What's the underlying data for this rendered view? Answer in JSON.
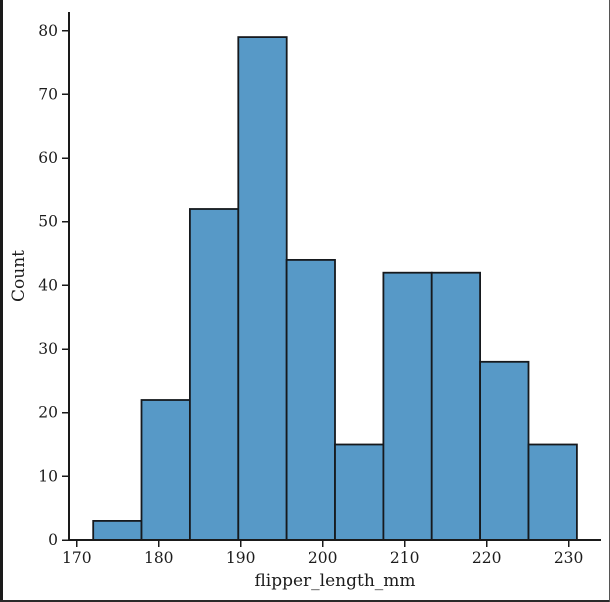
{
  "figure": {
    "background": "#ffffff",
    "border_color": "#1a1a1a"
  },
  "chart_data": {
    "type": "bar",
    "subtype": "histogram",
    "title": "",
    "xlabel": "flipper_length_mm",
    "ylabel": "Count",
    "bin_edges": [
      172,
      177.9,
      183.8,
      189.7,
      195.6,
      201.5,
      207.4,
      213.3,
      219.2,
      225.1,
      231
    ],
    "counts": [
      3,
      22,
      52,
      79,
      44,
      15,
      42,
      42,
      28,
      15
    ],
    "x_ticks": [
      170,
      180,
      190,
      200,
      210,
      220,
      230
    ],
    "y_ticks": [
      0,
      10,
      20,
      30,
      40,
      50,
      60,
      70,
      80
    ],
    "xlim": [
      169.05,
      233.95
    ],
    "ylim": [
      0,
      82.95
    ],
    "grid": false,
    "legend": null,
    "colors": {
      "bar_fill": "#5799c7",
      "bar_edge": "#16191d",
      "axis": "#1a1a1a",
      "text": "#1c1c1c"
    }
  }
}
